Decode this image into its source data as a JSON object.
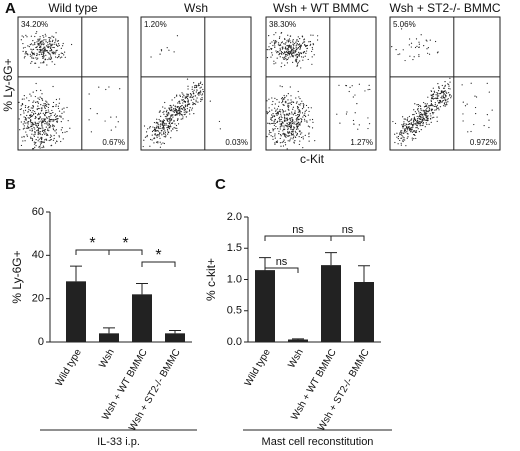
{
  "chart_data": [
    {
      "type": "flow",
      "panel": "A",
      "x_label": "c-Kit",
      "y_label": "% Ly-6G+",
      "plots": [
        {
          "title": "Wild type",
          "values": [
            34.2,
            0.67
          ],
          "value_labels": [
            "34.20%",
            "0.67%"
          ]
        },
        {
          "title": "Wsh",
          "values": [
            1.2,
            0.03
          ],
          "value_labels": [
            "1.20%",
            "0.03%"
          ]
        },
        {
          "title": "Wsh + WT BMMC",
          "values": [
            38.3,
            1.27
          ],
          "value_labels": [
            "38.30%",
            "1.27%"
          ]
        },
        {
          "title": "Wsh + ST2-/- BMMC",
          "values": [
            5.06,
            0.972
          ],
          "value_labels": [
            "5.06%",
            "0.972%"
          ]
        }
      ]
    },
    {
      "type": "bar",
      "panel": "B",
      "y_label": "% Ly-6G+",
      "group_label": "IL-33 i.p.",
      "categories": [
        "Wild type",
        "Wsh",
        "Wsh + WT BMMC",
        "Wsh + ST2-/- BMMC"
      ],
      "values": [
        28,
        4,
        22,
        4
      ],
      "errors": [
        7,
        2.5,
        5,
        1.3
      ],
      "color": "#222222",
      "ylim": [
        0,
        60
      ],
      "yticks": [
        0,
        20,
        40,
        60
      ],
      "annotations": [
        "*",
        "*",
        "*"
      ]
    },
    {
      "type": "bar",
      "panel": "C",
      "y_label": "% c-kit+",
      "group_label": "Mast cell reconstitution",
      "categories": [
        "Wild type",
        "Wsh",
        "Wsh + WT BMMC",
        "Wsh + ST2-/- BMMC"
      ],
      "values": [
        1.15,
        0.04,
        1.23,
        0.96
      ],
      "errors": [
        0.2,
        0.01,
        0.2,
        0.26
      ],
      "color": "#222222",
      "ylim": [
        0,
        2
      ],
      "yticks": [
        {
          "value": 0,
          "label": "0.0"
        },
        {
          "value": 0.5,
          "label": "0.5"
        },
        {
          "value": 1,
          "label": "1.0"
        },
        {
          "value": 1.5,
          "label": "1.5"
        },
        {
          "value": 2,
          "label": "2.0"
        }
      ],
      "annotations": [
        "ns",
        "ns",
        "ns"
      ]
    }
  ]
}
